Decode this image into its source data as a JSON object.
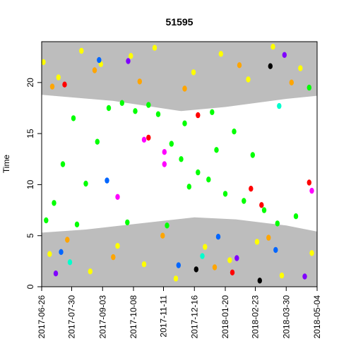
{
  "chart_data": {
    "type": "scatter",
    "title": "51595",
    "xlabel": "",
    "ylabel": "Time",
    "x_ticks": [
      "2017-06-26",
      "2017-07-30",
      "2017-09-03",
      "2017-10-08",
      "2017-11-11",
      "2017-12-16",
      "2018-01-20",
      "2018-02-23",
      "2018-03-30",
      "2018-05-04"
    ],
    "xlim": [
      "2017-06-26",
      "2018-05-04"
    ],
    "y_ticks": [
      "0",
      "5",
      "10",
      "15",
      "20"
    ],
    "ylim": [
      0,
      24
    ],
    "grid": false,
    "legend": "none",
    "background_polygons": [
      {
        "color": "#bdbdbd",
        "points": [
          [
            "2017-06-26",
            18.8
          ],
          [
            "2017-09-15",
            18.2
          ],
          [
            "2017-12-01",
            17.2
          ],
          [
            "2018-01-20",
            17.6
          ],
          [
            "2018-03-30",
            18.4
          ],
          [
            "2018-05-04",
            18.7
          ],
          [
            "2018-05-04",
            24
          ],
          [
            "2017-06-26",
            24
          ]
        ]
      },
      {
        "color": "#bdbdbd",
        "points": [
          [
            "2017-06-26",
            0
          ],
          [
            "2018-05-04",
            0
          ],
          [
            "2018-05-04",
            5.4
          ],
          [
            "2018-03-30",
            6.0
          ],
          [
            "2018-02-01",
            6.6
          ],
          [
            "2017-12-16",
            6.8
          ],
          [
            "2017-10-15",
            6.2
          ],
          [
            "2017-08-15",
            5.6
          ],
          [
            "2017-06-26",
            5.3
          ]
        ]
      }
    ],
    "series": [
      {
        "color": "#00ff00",
        "points": [
          [
            "2017-07-01",
            6.5
          ],
          [
            "2017-07-10",
            8.2
          ],
          [
            "2017-07-20",
            12.0
          ],
          [
            "2017-08-01",
            16.5
          ],
          [
            "2017-08-15",
            10.1
          ],
          [
            "2017-08-28",
            14.2
          ],
          [
            "2017-09-10",
            17.5
          ],
          [
            "2017-09-25",
            18.0
          ],
          [
            "2017-10-10",
            17.2
          ],
          [
            "2017-10-25",
            17.8
          ],
          [
            "2017-11-05",
            16.9
          ],
          [
            "2017-11-20",
            14.0
          ],
          [
            "2017-12-01",
            12.5
          ],
          [
            "2017-12-10",
            9.8
          ],
          [
            "2017-12-20",
            11.2
          ],
          [
            "2018-01-01",
            10.5
          ],
          [
            "2018-01-10",
            13.4
          ],
          [
            "2018-01-20",
            9.1
          ],
          [
            "2018-01-30",
            15.2
          ],
          [
            "2018-02-10",
            8.4
          ],
          [
            "2018-02-20",
            12.9
          ],
          [
            "2018-03-05",
            7.5
          ],
          [
            "2018-03-20",
            6.2
          ],
          [
            "2018-04-10",
            6.9
          ],
          [
            "2018-04-25",
            19.5
          ],
          [
            "2017-08-05",
            6.1
          ],
          [
            "2017-10-01",
            6.3
          ],
          [
            "2017-11-15",
            6.0
          ],
          [
            "2017-12-05",
            16.0
          ],
          [
            "2018-01-05",
            17.1
          ]
        ]
      },
      {
        "color": "#ffff00",
        "points": [
          [
            "2017-06-28",
            22.0
          ],
          [
            "2017-07-15",
            20.5
          ],
          [
            "2017-08-10",
            23.1
          ],
          [
            "2017-09-01",
            21.8
          ],
          [
            "2017-10-05",
            22.6
          ],
          [
            "2017-11-01",
            23.4
          ],
          [
            "2017-12-15",
            21.0
          ],
          [
            "2018-01-15",
            22.8
          ],
          [
            "2018-02-15",
            20.3
          ],
          [
            "2018-03-15",
            23.5
          ],
          [
            "2018-04-15",
            21.4
          ],
          [
            "2017-07-05",
            3.2
          ],
          [
            "2017-08-20",
            1.5
          ],
          [
            "2017-09-20",
            4.0
          ],
          [
            "2017-10-20",
            2.2
          ],
          [
            "2017-11-25",
            0.8
          ],
          [
            "2017-12-28",
            3.9
          ],
          [
            "2018-01-25",
            2.6
          ],
          [
            "2018-02-25",
            4.4
          ],
          [
            "2018-03-25",
            1.1
          ],
          [
            "2018-04-28",
            3.3
          ]
        ]
      },
      {
        "color": "#ffa500",
        "points": [
          [
            "2017-07-08",
            19.6
          ],
          [
            "2017-08-25",
            21.2
          ],
          [
            "2017-10-15",
            20.1
          ],
          [
            "2017-12-05",
            19.4
          ],
          [
            "2018-02-05",
            21.7
          ],
          [
            "2018-04-05",
            20.0
          ],
          [
            "2017-07-25",
            4.6
          ],
          [
            "2017-09-15",
            2.9
          ],
          [
            "2017-11-10",
            5.0
          ],
          [
            "2018-01-08",
            1.9
          ],
          [
            "2018-03-10",
            4.8
          ]
        ]
      },
      {
        "color": "#ff0000",
        "points": [
          [
            "2017-07-22",
            19.8
          ],
          [
            "2017-10-25",
            14.6
          ],
          [
            "2017-12-20",
            16.8
          ],
          [
            "2018-02-18",
            9.6
          ],
          [
            "2018-04-25",
            10.2
          ],
          [
            "2018-01-28",
            1.4
          ],
          [
            "2018-03-02",
            8.0
          ]
        ]
      },
      {
        "color": "#0066ff",
        "points": [
          [
            "2017-07-18",
            3.4
          ],
          [
            "2017-09-08",
            10.4
          ],
          [
            "2017-11-28",
            2.1
          ],
          [
            "2018-01-12",
            4.9
          ],
          [
            "2018-03-18",
            3.6
          ],
          [
            "2017-08-30",
            22.2
          ]
        ]
      },
      {
        "color": "#8000ff",
        "points": [
          [
            "2017-07-12",
            1.3
          ],
          [
            "2017-10-02",
            22.1
          ],
          [
            "2018-02-02",
            2.8
          ],
          [
            "2018-03-28",
            22.7
          ],
          [
            "2018-04-20",
            1.0
          ]
        ]
      },
      {
        "color": "#ff00ff",
        "points": [
          [
            "2017-11-12",
            13.2
          ],
          [
            "2017-11-12",
            12.0
          ],
          [
            "2017-10-20",
            14.4
          ],
          [
            "2017-09-20",
            8.8
          ],
          [
            "2018-04-28",
            9.4
          ]
        ]
      },
      {
        "color": "#00ffcc",
        "points": [
          [
            "2017-07-28",
            2.4
          ],
          [
            "2017-12-25",
            3.0
          ],
          [
            "2018-03-22",
            17.7
          ]
        ]
      },
      {
        "color": "#000000",
        "points": [
          [
            "2018-03-12",
            21.6
          ],
          [
            "2018-02-28",
            0.6
          ],
          [
            "2017-12-18",
            1.7
          ]
        ]
      }
    ]
  }
}
